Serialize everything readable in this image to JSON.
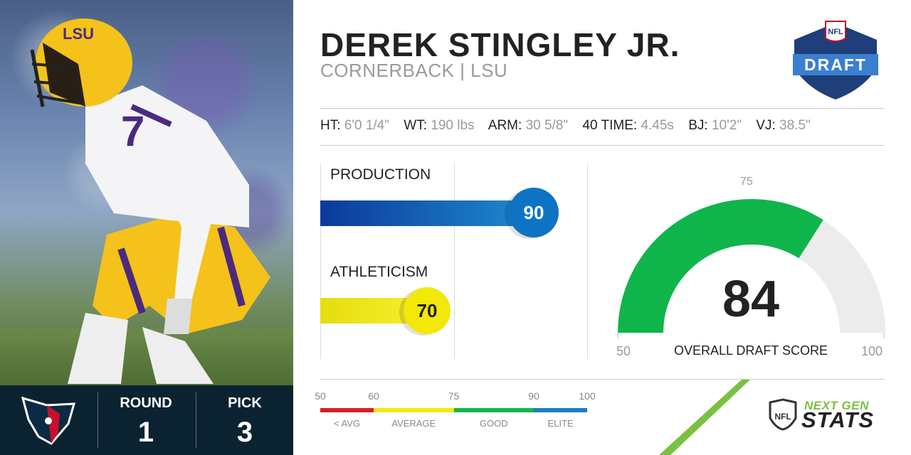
{
  "player": {
    "name": "DEREK STINGLEY JR.",
    "position_school": "CORNERBACK | LSU",
    "jersey_number": "7",
    "helmet_text": "LSU"
  },
  "draft_logo": {
    "top_text": "NFL",
    "main_text": "DRAFT"
  },
  "measurements": [
    {
      "key": "HT:",
      "value": "6'0 1/4\""
    },
    {
      "key": "WT:",
      "value": "190 lbs"
    },
    {
      "key": "ARM:",
      "value": "30 5/8\""
    },
    {
      "key": "40 TIME:",
      "value": "4.45s"
    },
    {
      "key": "BJ:",
      "value": "10'2\""
    },
    {
      "key": "VJ:",
      "value": "38.5\""
    }
  ],
  "team": {
    "icon": "houston-texans-logo",
    "round_label": "ROUND",
    "round_value": "1",
    "pick_label": "PICK",
    "pick_value": "3"
  },
  "metrics": [
    {
      "label": "PRODUCTION",
      "score": 90,
      "display": "90",
      "color": "#0d74c4",
      "tier": "ELITE"
    },
    {
      "label": "ATHLETICISM",
      "score": 70,
      "display": "70",
      "color": "#f2e80a",
      "tier": "AVERAGE"
    }
  ],
  "gauge": {
    "score": 84,
    "display": "84",
    "caption": "OVERALL DRAFT SCORE",
    "min_label": "50",
    "max_label": "100",
    "mid_tick_label": "75",
    "min": 50,
    "max": 100,
    "fill_color": "#0fb54b",
    "track_color": "#ececec"
  },
  "scale": {
    "ticks": [
      "50",
      "60",
      "75",
      "90",
      "100"
    ],
    "tick_values": [
      50,
      60,
      75,
      90,
      100
    ],
    "segments": [
      {
        "from": 50,
        "to": 60,
        "color": "#d81e26",
        "label": "< AVG"
      },
      {
        "from": 60,
        "to": 75,
        "color": "#f2e80a",
        "label": "AVERAGE"
      },
      {
        "from": 75,
        "to": 90,
        "color": "#13b54d",
        "label": "GOOD"
      },
      {
        "from": 90,
        "to": 100,
        "color": "#1a7cc8",
        "label": "ELITE"
      }
    ]
  },
  "brand": {
    "next": "NEXT GEN",
    "stats": "STATS",
    "accent": "#7ac142"
  }
}
